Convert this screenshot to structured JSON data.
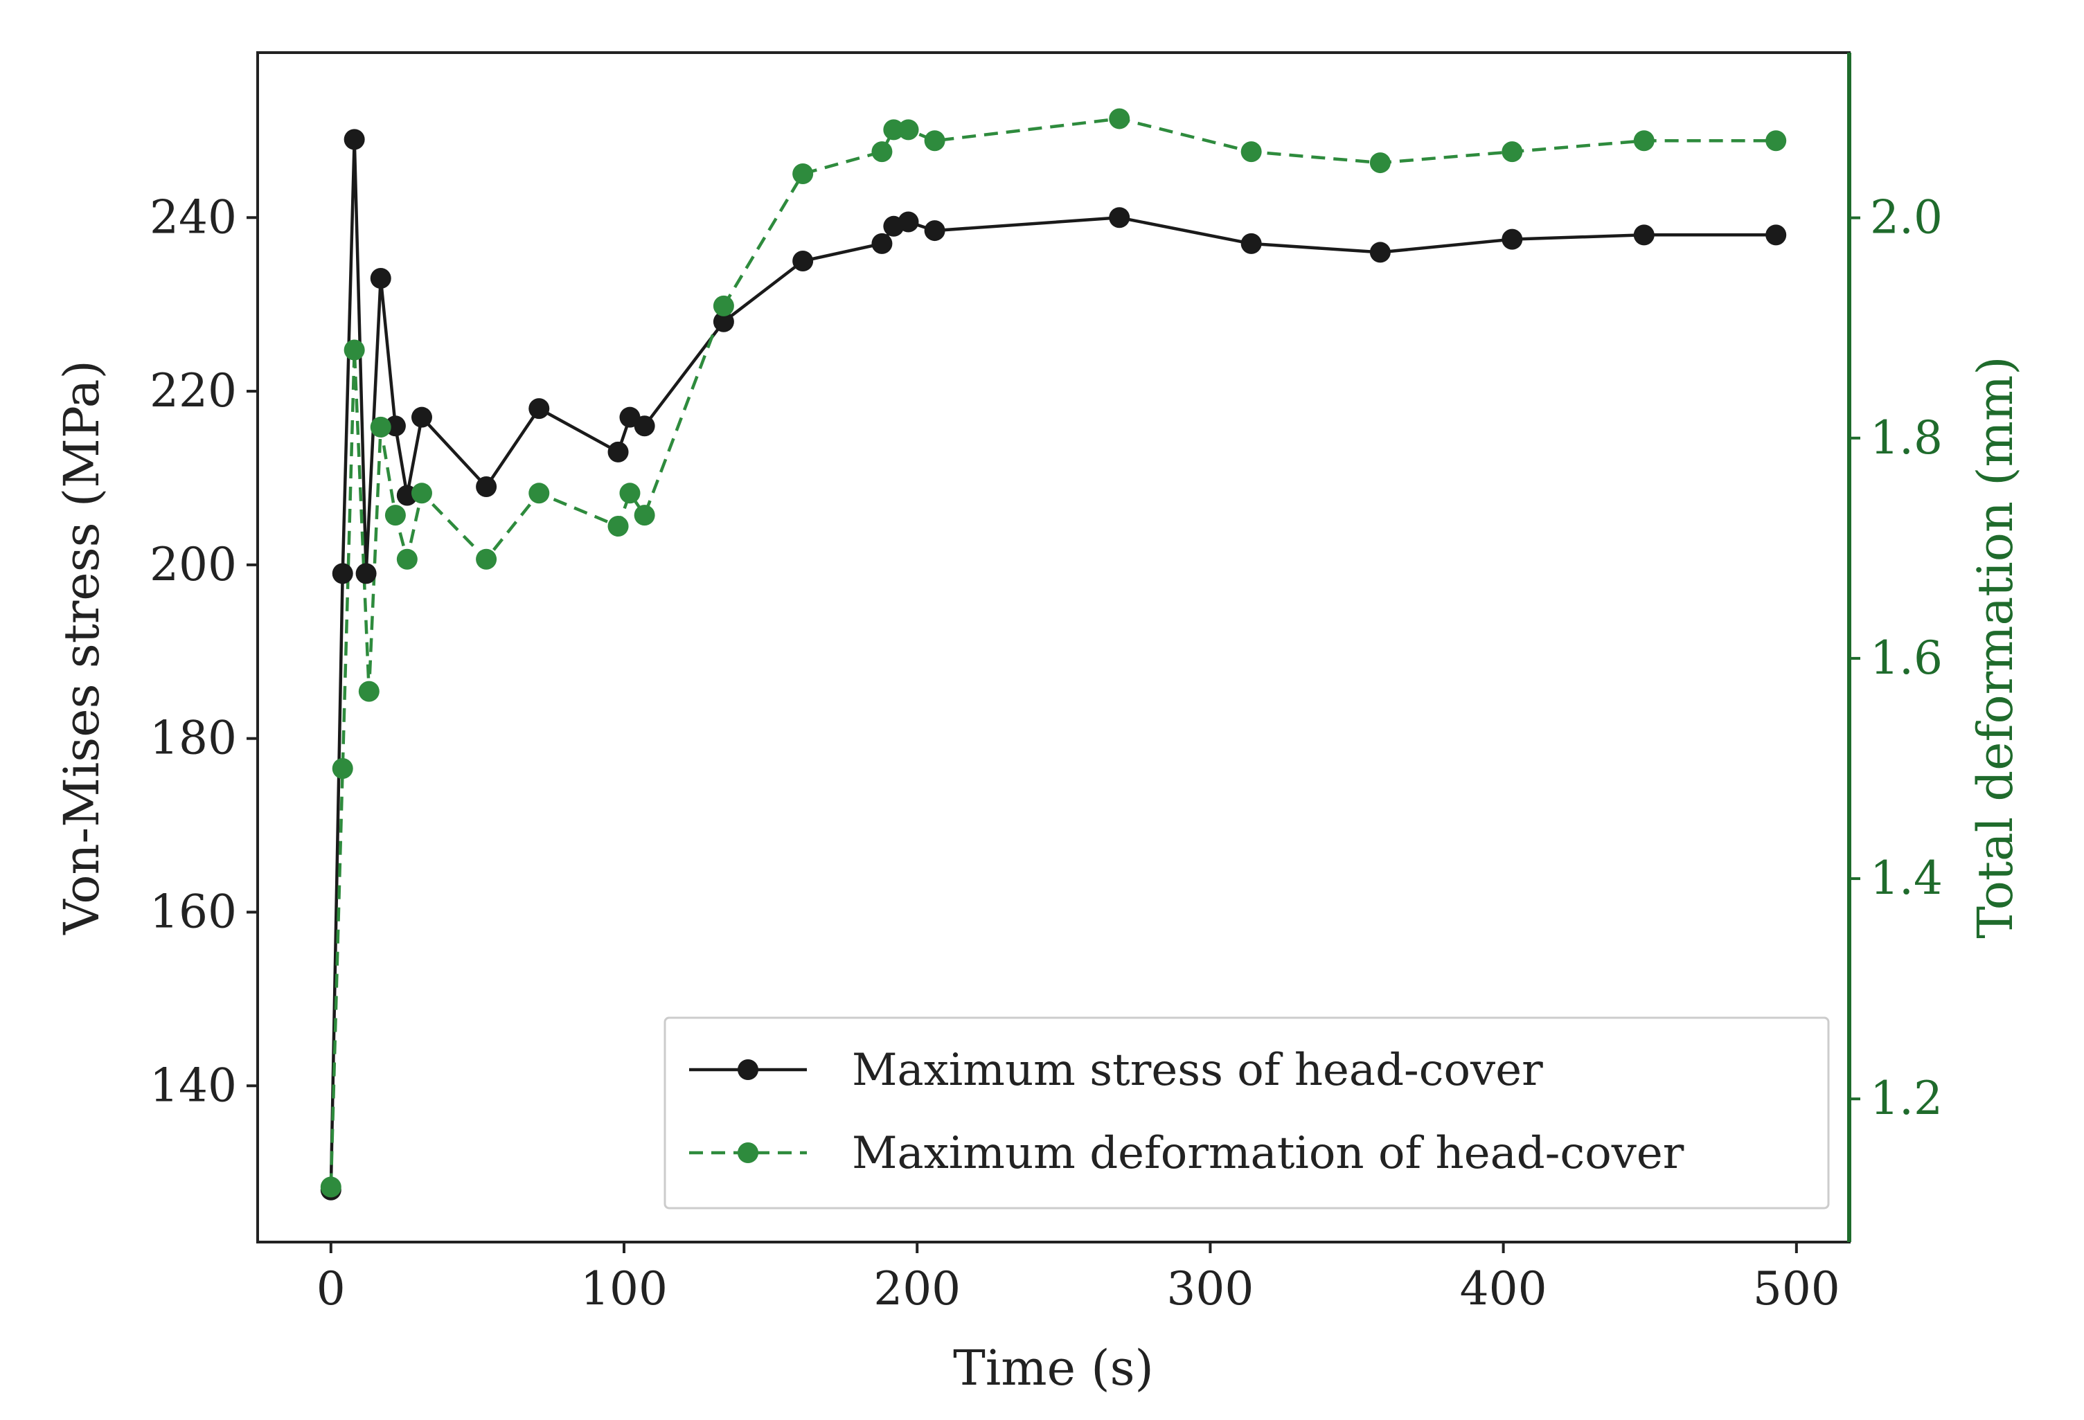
{
  "chart_data": {
    "type": "line",
    "xlabel": "Time (s)",
    "ylabel": "Von-Mises stress (MPa)",
    "y2label": "Total deformation (mm)",
    "xlim": [
      -25,
      518
    ],
    "ylim": [
      122,
      259
    ],
    "y2lim": [
      1.07,
      2.15
    ],
    "xticks": [
      0,
      100,
      200,
      300,
      400,
      500
    ],
    "yticks": [
      140,
      160,
      180,
      200,
      220,
      240
    ],
    "y2ticks": [
      1.2,
      1.4,
      1.6,
      1.8,
      2.0
    ],
    "xtick_labels": [
      "0",
      "100",
      "200",
      "300",
      "400",
      "500"
    ],
    "ytick_labels": [
      "140",
      "160",
      "180",
      "200",
      "220",
      "240"
    ],
    "y2tick_labels": [
      "1.2",
      "1.4",
      "1.6",
      "1.8",
      "2.0"
    ],
    "legend_position": "lower-right",
    "series": [
      {
        "name": "Maximum stress of head-cover",
        "axis": "left",
        "color": "#1a1a1a",
        "linestyle": "solid",
        "x": [
          0,
          4,
          8,
          12,
          17,
          22,
          26,
          31,
          53,
          71,
          98,
          102,
          107,
          134,
          161,
          188,
          192,
          197,
          206,
          269,
          314,
          358,
          403,
          448,
          493
        ],
        "y": [
          128,
          199,
          249,
          199,
          233,
          216,
          208,
          217,
          209,
          218,
          213,
          217,
          216,
          228,
          235,
          237,
          239,
          239.5,
          238.5,
          240,
          237,
          236,
          237.5,
          238,
          238
        ]
      },
      {
        "name": "Maximum deformation of head-cover",
        "axis": "right",
        "color": "#2e8b3d",
        "linestyle": "dashed",
        "x": [
          0,
          4,
          8,
          13,
          17,
          22,
          26,
          31,
          53,
          71,
          98,
          102,
          107,
          134,
          161,
          188,
          192,
          197,
          206,
          269,
          314,
          358,
          403,
          448,
          493
        ],
        "y": [
          1.12,
          1.5,
          1.88,
          1.57,
          1.81,
          1.73,
          1.69,
          1.75,
          1.69,
          1.75,
          1.72,
          1.75,
          1.73,
          1.92,
          2.04,
          2.06,
          2.08,
          2.08,
          2.07,
          2.09,
          2.06,
          2.05,
          2.06,
          2.07,
          2.07
        ]
      }
    ]
  },
  "colors": {
    "stress": "#1a1a1a",
    "deformation": "#2e8b3d",
    "right_axis": "#1f6b2c",
    "axis": "#222222"
  }
}
